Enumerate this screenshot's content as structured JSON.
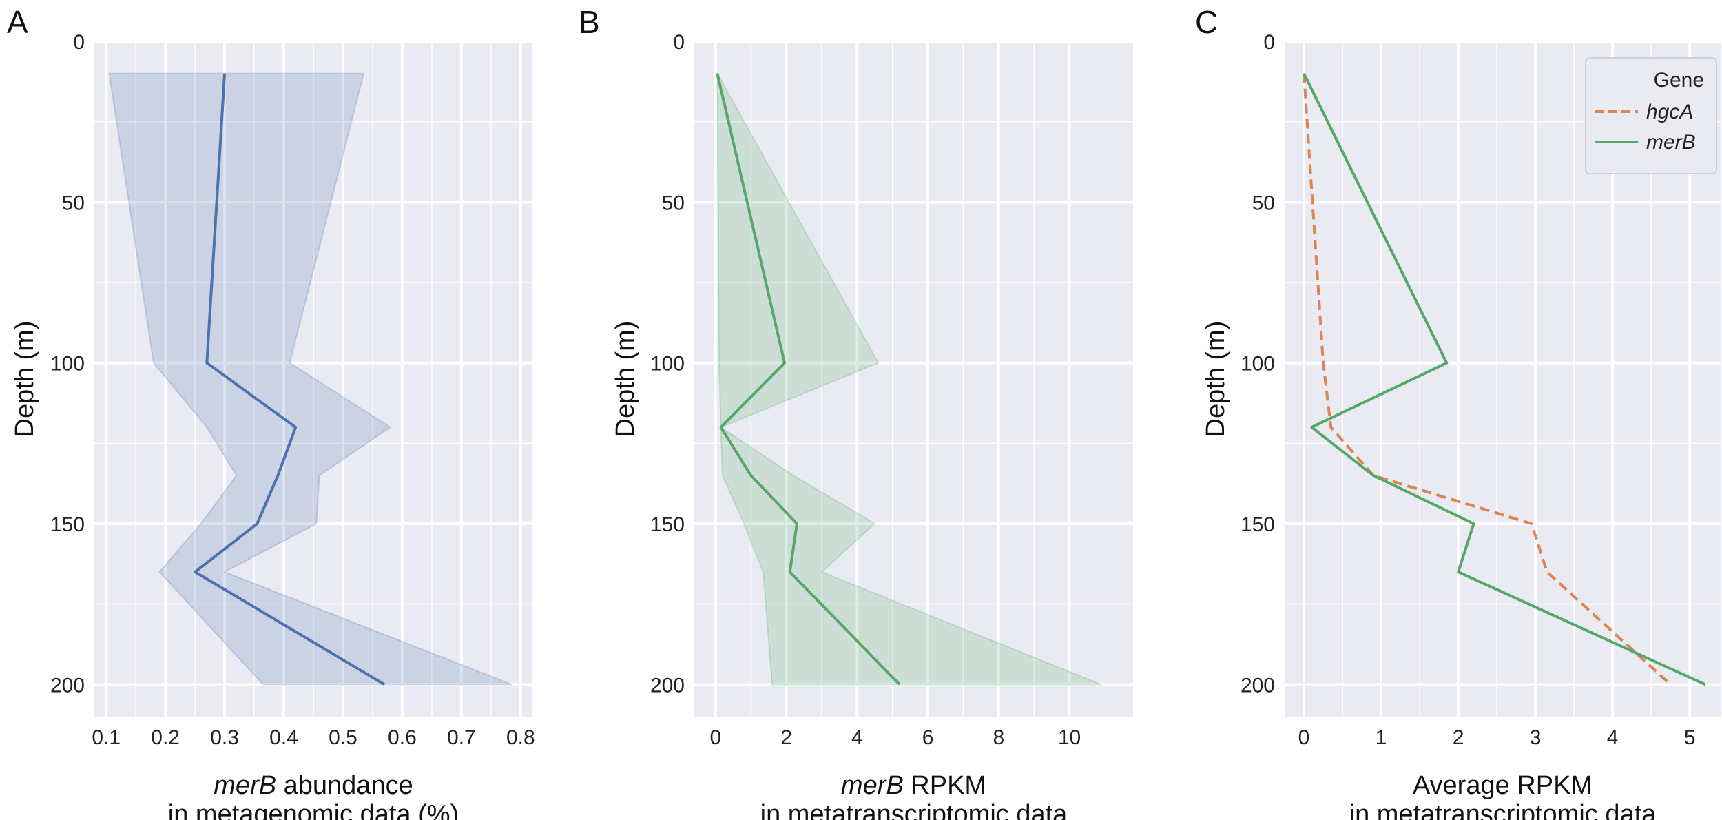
{
  "chart_data": [
    {
      "panel": "A",
      "type": "line",
      "ylabel": "Depth (m)",
      "xlabel_italic": "merB",
      "xlabel_rest": " abundance",
      "xlabel_line2": "in metagenomic data (%)",
      "xlim": [
        0.08,
        0.82
      ],
      "ylim": [
        210,
        0
      ],
      "xticks": [
        "0.1",
        "0.2",
        "0.3",
        "0.4",
        "0.5",
        "0.6",
        "0.7",
        "0.8"
      ],
      "xtick_values": [
        0.1,
        0.2,
        0.3,
        0.4,
        0.5,
        0.6,
        0.7,
        0.8
      ],
      "yticks": [
        "0",
        "50",
        "100",
        "150",
        "200"
      ],
      "ytick_values": [
        0,
        50,
        100,
        150,
        200
      ],
      "series": [
        {
          "color": "#4c72b0",
          "style": "solid",
          "depth": [
            10,
            100,
            120,
            135,
            150,
            165,
            200
          ],
          "values": [
            0.3,
            0.27,
            0.42,
            0.39,
            0.355,
            0.25,
            0.57
          ],
          "band_low": [
            0.105,
            0.18,
            0.27,
            0.32,
            0.26,
            0.19,
            0.365
          ],
          "band_high": [
            0.535,
            0.41,
            0.58,
            0.46,
            0.455,
            0.3,
            0.785
          ]
        }
      ]
    },
    {
      "panel": "B",
      "type": "line",
      "ylabel": "Depth (m)",
      "xlabel_italic": "merB",
      "xlabel_rest": " RPKM",
      "xlabel_line2": "in metatranscriptomic data",
      "xlim": [
        -0.6,
        11.8
      ],
      "ylim": [
        210,
        0
      ],
      "xticks": [
        "0",
        "2",
        "4",
        "6",
        "8",
        "10"
      ],
      "xtick_values": [
        0,
        2,
        4,
        6,
        8,
        10
      ],
      "yticks": [
        "0",
        "50",
        "100",
        "150",
        "200"
      ],
      "ytick_values": [
        0,
        50,
        100,
        150,
        200
      ],
      "series": [
        {
          "color": "#55a868",
          "style": "solid",
          "depth": [
            10,
            100,
            120,
            135,
            150,
            165,
            200
          ],
          "values": [
            0.05,
            1.95,
            0.15,
            1.0,
            2.3,
            2.1,
            5.2
          ],
          "band_low": [
            0.05,
            0.1,
            0.15,
            0.2,
            0.8,
            1.35,
            1.6
          ],
          "band_high": [
            0.05,
            4.6,
            0.15,
            2.2,
            4.5,
            3.0,
            10.9
          ]
        }
      ]
    },
    {
      "panel": "C",
      "type": "line",
      "ylabel": "Depth (m)",
      "xlabel": "Average RPKM",
      "xlabel_line2": "in metatranscriptomic data",
      "xlim": [
        -0.25,
        5.4
      ],
      "ylim": [
        210,
        0
      ],
      "xticks": [
        "0",
        "1",
        "2",
        "3",
        "4",
        "5"
      ],
      "xtick_values": [
        0,
        1,
        2,
        3,
        4,
        5
      ],
      "yticks": [
        "0",
        "50",
        "100",
        "150",
        "200"
      ],
      "ytick_values": [
        0,
        50,
        100,
        150,
        200
      ],
      "legend": {
        "title": "Gene",
        "placement": "top-right"
      },
      "series": [
        {
          "name": "hgcA",
          "color": "#dd8452",
          "style": "dashed",
          "depth": [
            10,
            100,
            120,
            135,
            150,
            165,
            200
          ],
          "values": [
            0.0,
            0.25,
            0.35,
            0.9,
            2.95,
            3.15,
            4.75
          ]
        },
        {
          "name": "merB",
          "color": "#55a868",
          "style": "solid",
          "depth": [
            10,
            100,
            120,
            135,
            150,
            165,
            200
          ],
          "values": [
            0.0,
            1.85,
            0.1,
            0.9,
            2.2,
            2.0,
            5.2
          ]
        }
      ]
    }
  ]
}
